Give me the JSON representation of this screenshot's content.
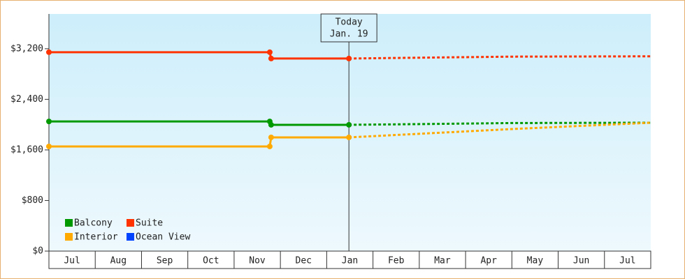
{
  "chart_data": {
    "type": "line",
    "categories": [
      "Jul",
      "Aug",
      "Sep",
      "Oct",
      "Nov",
      "Dec",
      "Jan",
      "Feb",
      "Mar",
      "Apr",
      "May",
      "Jun",
      "Jul"
    ],
    "xlim": [
      0,
      13
    ],
    "ylim": [
      0,
      3750
    ],
    "yticks": [
      {
        "value": 0,
        "label": "$0"
      },
      {
        "value": 800,
        "label": "$800"
      },
      {
        "value": 1600,
        "label": "$1,600"
      },
      {
        "value": 2400,
        "label": "$2,400"
      },
      {
        "value": 3200,
        "label": "$3,200"
      }
    ],
    "today": {
      "x": 6.48,
      "label": "Today",
      "date": "Jan. 19"
    },
    "series": [
      {
        "name": "Balcony",
        "color": "#009900",
        "x": [
          0,
          4.77,
          4.8,
          6.48
        ],
        "values": [
          2050,
          2050,
          1997,
          1997
        ],
        "forecast_x": [
          6.48,
          7.6,
          10,
          13
        ],
        "forecast_values": [
          1997,
          2005,
          2025,
          2030
        ]
      },
      {
        "name": "Suite",
        "color": "#ff3300",
        "x": [
          0,
          4.77,
          4.8,
          6.48
        ],
        "values": [
          3145,
          3145,
          3045,
          3045
        ],
        "forecast_x": [
          6.48,
          7.6,
          10,
          13
        ],
        "forecast_values": [
          3045,
          3055,
          3075,
          3080
        ]
      },
      {
        "name": "Interior",
        "color": "#ffaa00",
        "x": [
          0,
          4.77,
          4.8,
          6.48
        ],
        "values": [
          1655,
          1655,
          1798,
          1798
        ],
        "forecast_x": [
          6.48,
          7.6,
          10,
          13
        ],
        "forecast_values": [
          1798,
          1840,
          1930,
          2030
        ]
      },
      {
        "name": "Ocean View",
        "color": "#0044ff",
        "x": [],
        "values": [],
        "forecast_x": [],
        "forecast_values": []
      }
    ]
  }
}
